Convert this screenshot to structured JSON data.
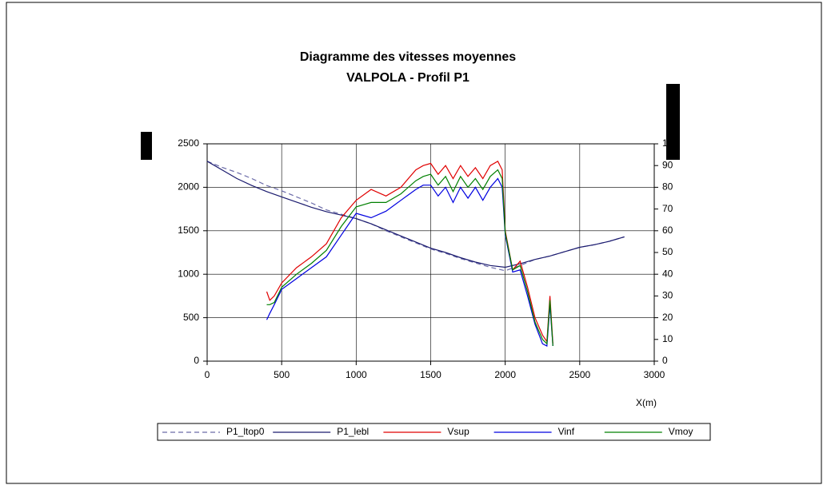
{
  "chart_data": {
    "type": "line",
    "title": "Diagramme des vitesses moyennes",
    "subtitle": "VALPOLA   -   Profil P1",
    "xlabel": "X(m)",
    "xlim": [
      0,
      3000
    ],
    "xticks": [
      0,
      500,
      1000,
      1500,
      2000,
      2500,
      3000
    ],
    "ylim": [
      0,
      2500
    ],
    "yticks": [
      0,
      500,
      1000,
      1500,
      2000,
      2500
    ],
    "y2lim": [
      0,
      100
    ],
    "y2ticks": [
      0,
      10,
      20,
      30,
      40,
      50,
      60,
      70,
      80,
      90,
      100
    ],
    "grid": true,
    "series": [
      {
        "name": "P1_ltop0",
        "color": "#6a6aa8",
        "dash": true,
        "x": [
          0,
          100,
          200,
          300,
          400,
          500,
          600,
          700,
          800,
          900,
          1000,
          1100,
          1200,
          1300,
          1400,
          1500,
          1600,
          1700,
          1800,
          1900,
          2000,
          2100,
          2200,
          2300,
          2400,
          2500,
          2600,
          2700,
          2800
        ],
        "values": [
          2300,
          2230,
          2170,
          2100,
          2020,
          1960,
          1890,
          1820,
          1740,
          1690,
          1640,
          1580,
          1500,
          1430,
          1360,
          1290,
          1240,
          1180,
          1130,
          1080,
          1040,
          1100,
          1170,
          1210,
          1260,
          1310,
          1340,
          1380,
          1430
        ]
      },
      {
        "name": "P1_lebl",
        "color": "#1a1a6e",
        "x": [
          0,
          100,
          200,
          300,
          400,
          500,
          600,
          700,
          800,
          900,
          1000,
          1100,
          1200,
          1300,
          1400,
          1500,
          1600,
          1700,
          1800,
          1900,
          2000,
          2100,
          2200,
          2300,
          2400,
          2500,
          2600,
          2700,
          2800
        ],
        "values": [
          2300,
          2200,
          2100,
          2020,
          1950,
          1890,
          1830,
          1770,
          1720,
          1680,
          1640,
          1580,
          1510,
          1440,
          1370,
          1300,
          1250,
          1190,
          1140,
          1100,
          1080,
          1120,
          1170,
          1210,
          1260,
          1310,
          1340,
          1380,
          1430
        ]
      },
      {
        "name": "Vsup",
        "color": "#e00000",
        "axis": "y2",
        "x": [
          400,
          420,
          450,
          500,
          600,
          700,
          800,
          900,
          1000,
          1100,
          1200,
          1300,
          1400,
          1450,
          1500,
          1550,
          1600,
          1650,
          1700,
          1750,
          1800,
          1850,
          1900,
          1950,
          1980,
          2000,
          2050,
          2100,
          2150,
          2200,
          2250,
          2280,
          2300,
          2320
        ],
        "values": [
          32,
          28,
          30,
          36,
          43,
          48,
          54,
          66,
          74,
          79,
          76,
          80,
          88,
          90,
          91,
          86,
          90,
          84,
          90,
          85,
          89,
          84,
          90,
          92,
          88,
          60,
          42,
          46,
          34,
          20,
          12,
          9,
          30,
          8
        ]
      },
      {
        "name": "Vinf",
        "color": "#0000e0",
        "axis": "y2",
        "x": [
          400,
          420,
          450,
          500,
          600,
          700,
          800,
          900,
          1000,
          1100,
          1200,
          1300,
          1400,
          1450,
          1500,
          1550,
          1600,
          1650,
          1700,
          1750,
          1800,
          1850,
          1900,
          1950,
          1980,
          2000,
          2050,
          2100,
          2150,
          2200,
          2250,
          2280,
          2300,
          2320
        ],
        "values": [
          19,
          22,
          26,
          33,
          38,
          43,
          48,
          58,
          68,
          66,
          69,
          74,
          79,
          81,
          81,
          76,
          80,
          73,
          80,
          75,
          80,
          74,
          80,
          84,
          80,
          58,
          41,
          42,
          30,
          17,
          8,
          7,
          26,
          7
        ]
      },
      {
        "name": "Vmoy",
        "color": "#008000",
        "axis": "y2",
        "x": [
          400,
          420,
          450,
          500,
          600,
          700,
          800,
          900,
          1000,
          1100,
          1200,
          1300,
          1400,
          1450,
          1500,
          1550,
          1600,
          1650,
          1700,
          1750,
          1800,
          1850,
          1900,
          1950,
          1980,
          2000,
          2050,
          2100,
          2150,
          2200,
          2250,
          2280,
          2300,
          2320
        ],
        "values": [
          26,
          26,
          27,
          34,
          40,
          45,
          51,
          62,
          71,
          73,
          73,
          77,
          83,
          85,
          86,
          81,
          85,
          78,
          85,
          80,
          84,
          79,
          85,
          88,
          84,
          59,
          42,
          44,
          32,
          18,
          10,
          8,
          28,
          7
        ]
      }
    ]
  }
}
